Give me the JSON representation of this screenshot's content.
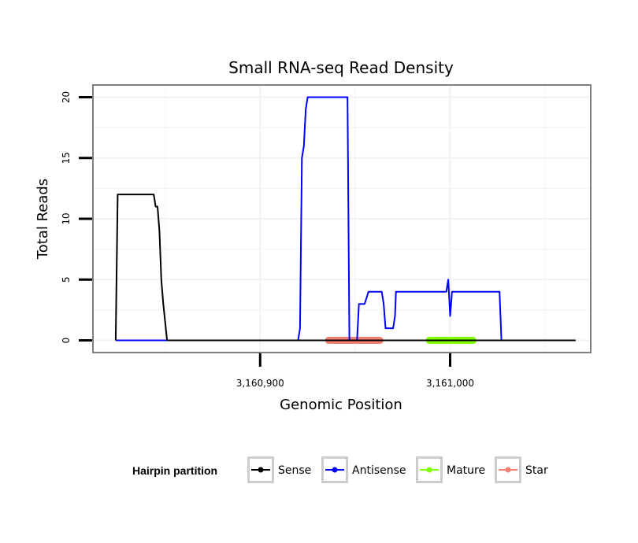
{
  "chart_data": {
    "type": "line",
    "title": "Small RNA-seq Read Density",
    "xlabel": "Genomic Position",
    "ylabel": "Total Reads",
    "xlim": [
      3160812,
      3161074
    ],
    "ylim": [
      -1,
      21
    ],
    "x_ticks": [
      {
        "value": 3160900,
        "label": "3,160,900"
      },
      {
        "value": 3161000,
        "label": "3,161,000"
      }
    ],
    "y_ticks": [
      {
        "value": 0,
        "label": "0"
      },
      {
        "value": 5,
        "label": "5"
      },
      {
        "value": 10,
        "label": "10"
      },
      {
        "value": 15,
        "label": "15"
      },
      {
        "value": 20,
        "label": "20"
      }
    ],
    "grid": true,
    "legend": {
      "title": "Hairpin partition",
      "position": "bottom",
      "entries": [
        {
          "name": "Sense",
          "color": "#000000"
        },
        {
          "name": "Antisense",
          "color": "#0000ff"
        },
        {
          "name": "Mature",
          "color": "#7fff00"
        },
        {
          "name": "Star",
          "color": "#f08070"
        }
      ]
    },
    "series": [
      {
        "name": "Sense",
        "color": "#000000",
        "x": [
          3160824,
          3160825,
          3160826,
          3160844,
          3160845,
          3160846,
          3160847,
          3160848,
          3160849,
          3160850,
          3160851,
          3161066
        ],
        "y": [
          0,
          12,
          12,
          12,
          11,
          11,
          9,
          5,
          3,
          1.5,
          0,
          0
        ]
      },
      {
        "name": "Antisense",
        "color": "#0000ff",
        "x": [
          3160824,
          3160920,
          3160921,
          3160922,
          3160923,
          3160924,
          3160925,
          3160926,
          3160946,
          3160947,
          3160951,
          3160952,
          3160953,
          3160955,
          3160956,
          3160957,
          3160964,
          3160965,
          3160966,
          3160970,
          3160971,
          3160971.5,
          3160998,
          3160999,
          3161000,
          3161001,
          3161026,
          3161027,
          3161066
        ],
        "y": [
          0,
          0,
          1,
          15,
          16,
          19,
          20,
          20,
          20,
          0,
          0,
          3,
          3,
          3,
          3.5,
          4,
          4,
          3,
          1,
          1,
          2,
          4,
          4,
          5,
          2,
          4,
          4,
          0,
          0
        ]
      },
      {
        "name": "Mature",
        "color": "#7fff00",
        "segment": [
          3160989,
          3161012
        ],
        "y": 0
      },
      {
        "name": "Star",
        "color": "#f08070",
        "segment": [
          3160936,
          3160963
        ],
        "y": 0
      }
    ]
  }
}
